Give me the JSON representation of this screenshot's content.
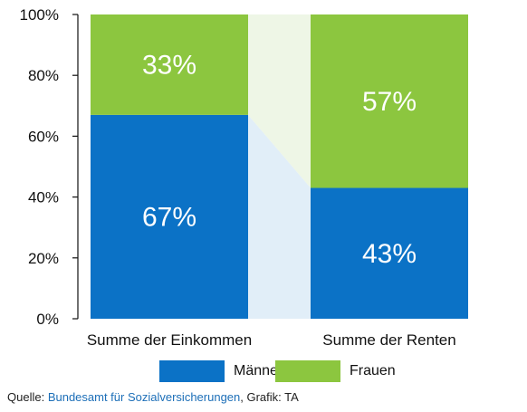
{
  "chart_data": {
    "type": "bar",
    "stacked": true,
    "normalized": true,
    "categories": [
      "Summe der Einkommen",
      "Summe der Renten"
    ],
    "series": [
      {
        "name": "Männer",
        "values": [
          67,
          43
        ],
        "labels": [
          "67%",
          "43%"
        ],
        "color": "#0b72c6"
      },
      {
        "name": "Frauen",
        "values": [
          33,
          57
        ],
        "labels": [
          "33%",
          "57%"
        ],
        "color": "#8cc63f"
      }
    ],
    "yticks": [
      0,
      20,
      40,
      60,
      80,
      100
    ],
    "ytick_labels": [
      "0%",
      "20%",
      "40%",
      "60%",
      "80%",
      "100%"
    ],
    "ylim": [
      0,
      100
    ],
    "connector_colors": {
      "lower": "#e1eef8",
      "upper": "#eef6e6"
    },
    "legend_placement": "bottom"
  },
  "source": {
    "prefix": "Quelle: ",
    "link": "Bundesamt für Sozialversicherungen",
    "suffix": ", Grafik: TA"
  }
}
